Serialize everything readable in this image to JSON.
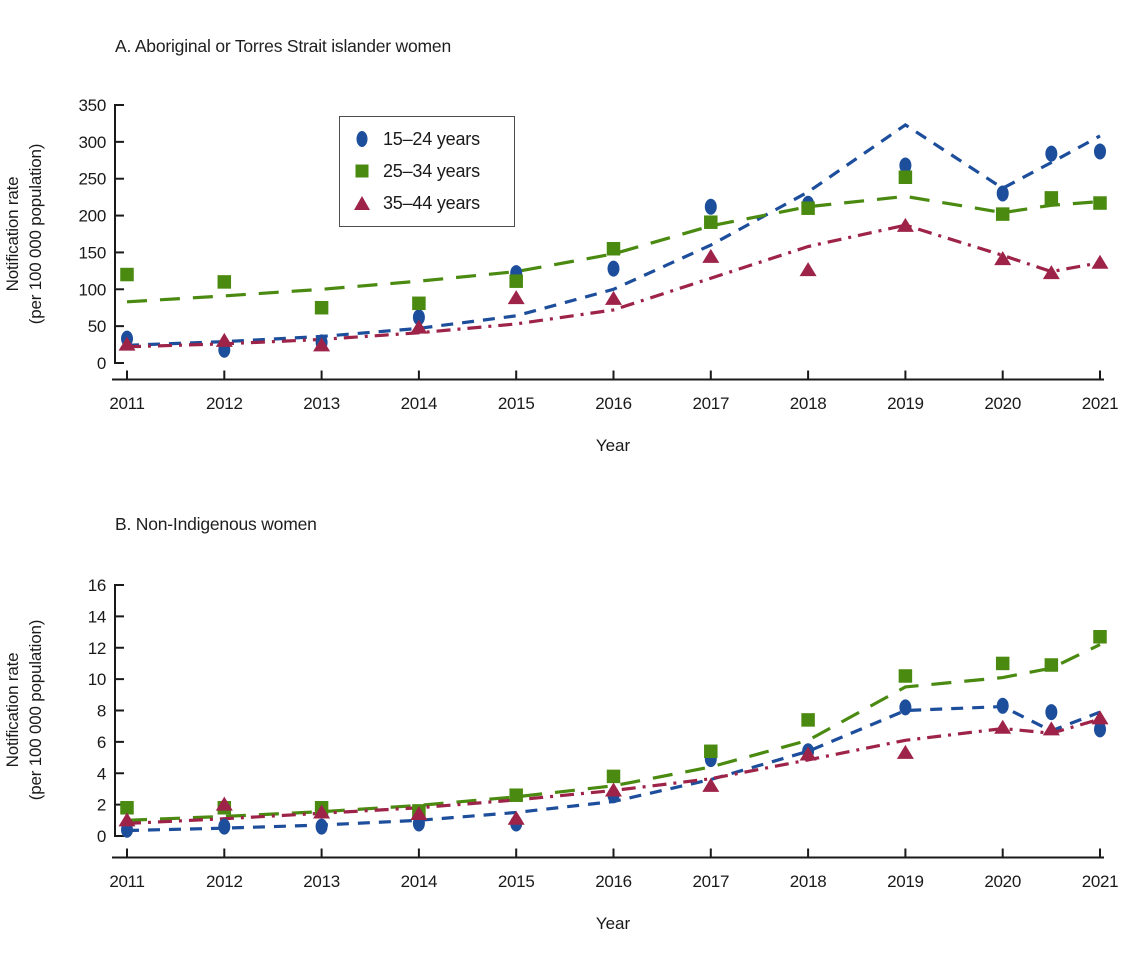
{
  "meta": {
    "background": "#ffffff",
    "axis_color": "#1a1a1a",
    "legend_border_color": "#4d4d4d"
  },
  "chart_data": [
    {
      "type": "scatter",
      "title": "A. Aboriginal or Torres Strait islander women",
      "xlabel": "Year",
      "ylabel": "Notification rate (per 100 000 population)",
      "ylabel_line1": "Notification rate",
      "ylabel_line2": "(per 100 000 population)",
      "ylim": [
        0,
        350
      ],
      "y_ticks": [
        0,
        50,
        100,
        150,
        200,
        250,
        300,
        350
      ],
      "x_ticks": [
        2011,
        2012,
        2013,
        2014,
        2015,
        2016,
        2017,
        2018,
        2019,
        2020,
        2021
      ],
      "x": [
        2011,
        2012,
        2013,
        2014,
        2015,
        2016,
        2017,
        2018,
        2019,
        2020,
        2020.5,
        2021
      ],
      "legend_visible": true,
      "series": [
        {
          "name": "15–24 years",
          "marker": "circle",
          "color": "#1d4e9c",
          "line_style": "dashed",
          "values": [
            33,
            18,
            28,
            62,
            122,
            128,
            212,
            216,
            268,
            230,
            284,
            287
          ],
          "trend": [
            24,
            29,
            36,
            47,
            64,
            100,
            160,
            232,
            323,
            237,
            272,
            308
          ]
        },
        {
          "name": "25–34 years",
          "marker": "square",
          "color": "#4a8a10",
          "line_style": "long-dash",
          "values": [
            120,
            110,
            75,
            81,
            111,
            155,
            191,
            210,
            252,
            202,
            224,
            217
          ],
          "trend": [
            83,
            91,
            100,
            111,
            124,
            148,
            186,
            212,
            226,
            204,
            214,
            219
          ]
        },
        {
          "name": "35–44 years",
          "marker": "triangle",
          "color": "#9e2348",
          "line_style": "dash-dot",
          "values": [
            25,
            30,
            24,
            48,
            88,
            87,
            144,
            126,
            186,
            141,
            122,
            136
          ],
          "trend": [
            22,
            26,
            32,
            41,
            53,
            72,
            115,
            158,
            187,
            146,
            124,
            136
          ]
        }
      ]
    },
    {
      "type": "scatter",
      "title": "B. Non-Indigenous women",
      "xlabel": "Year",
      "ylabel": "Notification rate (per 100 000 population)",
      "ylabel_line1": "Notification rate",
      "ylabel_line2": "(per 100 000 population)",
      "ylim": [
        0,
        16
      ],
      "y_ticks": [
        0,
        2,
        4,
        6,
        8,
        10,
        12,
        14,
        16
      ],
      "x_ticks": [
        2011,
        2012,
        2013,
        2014,
        2015,
        2016,
        2017,
        2018,
        2019,
        2020,
        2021
      ],
      "x": [
        2011,
        2012,
        2013,
        2014,
        2015,
        2016,
        2017,
        2018,
        2019,
        2020,
        2020.5,
        2021
      ],
      "legend_visible": false,
      "series": [
        {
          "name": "15–24 years",
          "marker": "circle",
          "color": "#1d4e9c",
          "line_style": "dashed",
          "values": [
            0.4,
            0.6,
            0.6,
            0.8,
            0.8,
            2.6,
            4.9,
            5.4,
            8.2,
            8.3,
            7.9,
            6.8
          ],
          "trend": [
            0.35,
            0.5,
            0.7,
            1.0,
            1.5,
            2.2,
            3.6,
            5.4,
            8.0,
            8.25,
            6.7,
            7.9
          ]
        },
        {
          "name": "25–34 years",
          "marker": "square",
          "color": "#4a8a10",
          "line_style": "long-dash",
          "values": [
            1.8,
            1.8,
            1.8,
            1.6,
            2.6,
            3.8,
            5.4,
            7.4,
            10.2,
            11.0,
            10.9,
            12.7
          ],
          "trend": [
            1.0,
            1.25,
            1.55,
            1.95,
            2.5,
            3.2,
            4.4,
            6.1,
            9.5,
            10.1,
            10.7,
            12.2
          ]
        },
        {
          "name": "35–44 years",
          "marker": "triangle",
          "color": "#9e2348",
          "line_style": "dash-dot",
          "values": [
            1.0,
            2.0,
            1.5,
            1.4,
            1.1,
            2.9,
            3.2,
            5.2,
            5.3,
            6.9,
            6.8,
            7.5
          ],
          "trend": [
            0.8,
            1.1,
            1.45,
            1.8,
            2.3,
            2.9,
            3.65,
            4.85,
            6.1,
            6.85,
            6.55,
            7.45
          ]
        }
      ]
    }
  ]
}
